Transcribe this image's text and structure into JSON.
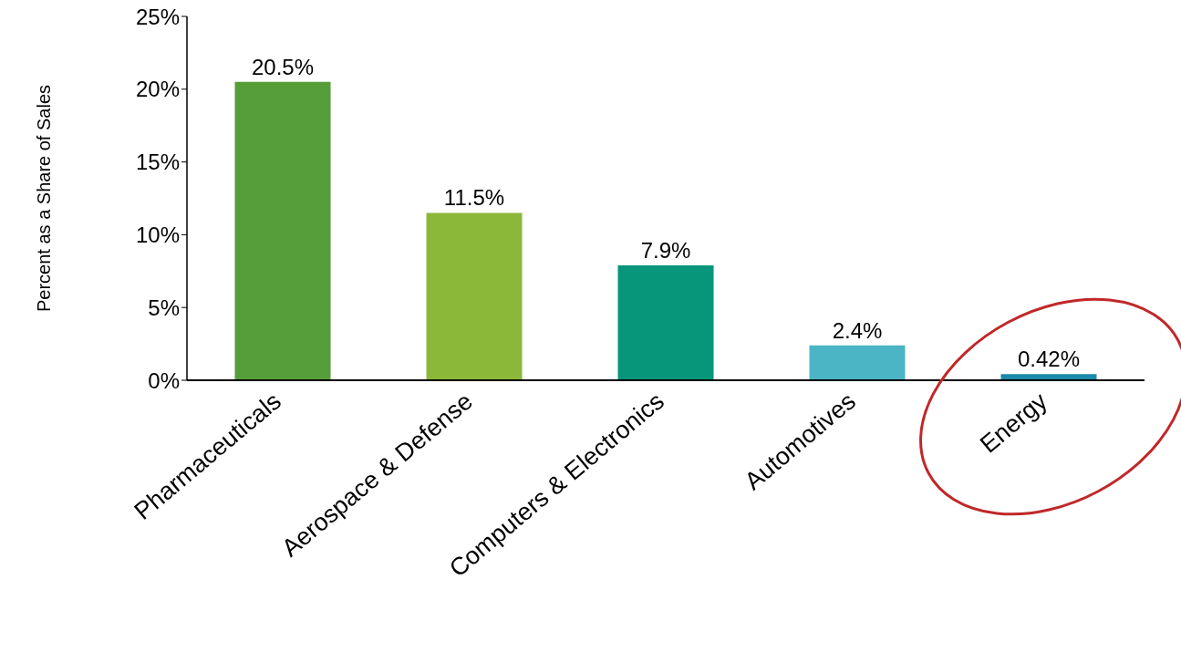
{
  "chart_data": {
    "type": "bar",
    "ylabel": "Percent as a Share of Sales",
    "categories": [
      "Pharmaceuticals",
      "Aerospace & Defense",
      "Computers & Electronics",
      "Automotives",
      "Energy"
    ],
    "values": [
      20.5,
      11.5,
      7.9,
      2.4,
      0.42
    ],
    "colors": [
      "#559e3a",
      "#8cb83a",
      "#07967a",
      "#4bb5c5",
      "#1b8aaa"
    ],
    "value_labels": [
      "20.5%",
      "11.5%",
      "7.9%",
      "2.4%",
      "0.42%"
    ],
    "ylim": [
      0,
      25
    ],
    "yticks": [
      {
        "value": 0,
        "label": "0%"
      },
      {
        "value": 5,
        "label": "5%"
      },
      {
        "value": 10,
        "label": "10%"
      },
      {
        "value": 15,
        "label": "15%"
      },
      {
        "value": 20,
        "label": "20%"
      },
      {
        "value": 25,
        "label": "25%"
      }
    ],
    "grid": false,
    "legend": false
  }
}
